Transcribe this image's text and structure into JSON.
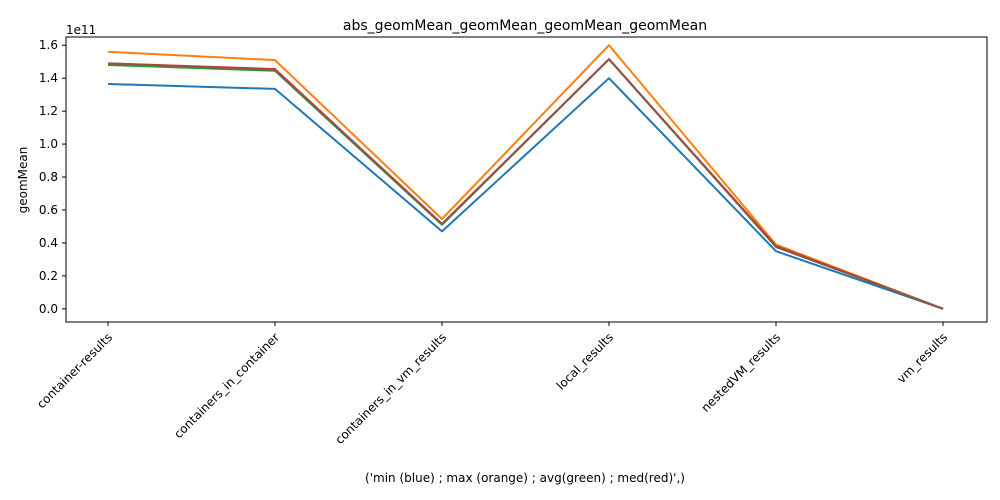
{
  "chart_data": {
    "type": "line",
    "title": "abs_geomMean_geomMean_geomMean_geomMean",
    "xlabel": "('min (blue) ; max (orange) ; avg(green) ; med(red)',)",
    "ylabel": "geomMean",
    "y_offset_label": "1e11",
    "categories": [
      "container-results",
      "containers_in_container",
      "containers_in_vm_results",
      "local_results",
      "nestedVM_results",
      "vm_results"
    ],
    "ylim": [
      -0.08,
      1.65
    ],
    "yticks": [
      0.0,
      0.2,
      0.4,
      0.6,
      0.8,
      1.0,
      1.2,
      1.4,
      1.6
    ],
    "ytick_labels": [
      "0.0",
      "0.2",
      "0.4",
      "0.6",
      "0.8",
      "1.0",
      "1.2",
      "1.4",
      "1.6"
    ],
    "grid": false,
    "series": [
      {
        "color": "#1f77b4",
        "values": [
          1.365,
          1.335,
          0.47,
          1.4,
          0.35,
          0.0
        ]
      },
      {
        "color": "#ff7f0e",
        "values": [
          1.56,
          1.51,
          0.545,
          1.6,
          0.39,
          0.0
        ]
      },
      {
        "color": "#2ca02c",
        "values": [
          1.48,
          1.445,
          0.51,
          1.515,
          0.38,
          0.0
        ]
      },
      {
        "color": "#d62728",
        "values": [
          1.49,
          1.455,
          0.515,
          1.515,
          0.38,
          0.0
        ]
      },
      {
        "color": "#8c564b",
        "values": [
          1.49,
          1.45,
          0.515,
          1.515,
          0.375,
          0.0
        ]
      }
    ]
  }
}
